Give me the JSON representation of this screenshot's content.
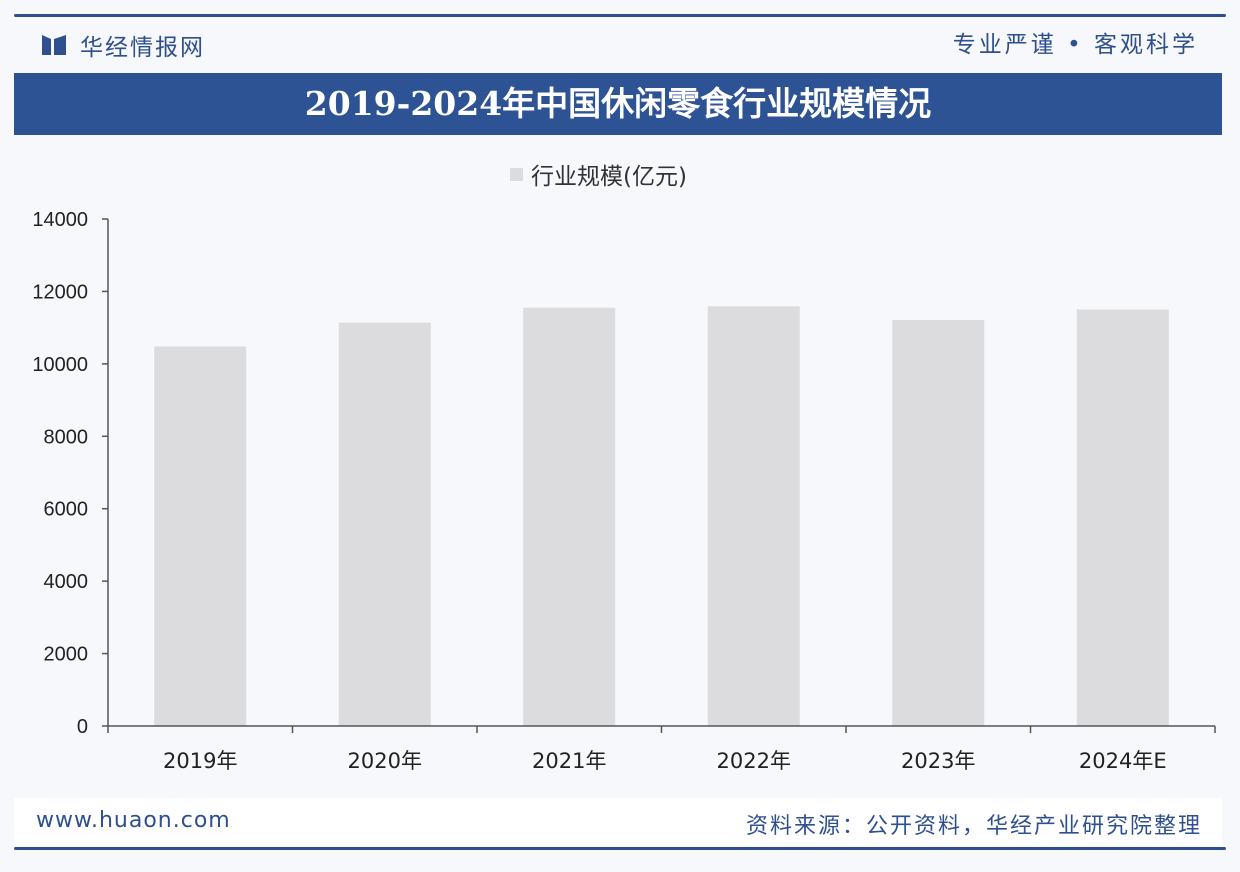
{
  "header": {
    "logo_text": "华经情报网",
    "slogan": "专业严谨 • 客观科学"
  },
  "chart_data": {
    "type": "bar",
    "title": "2019-2024年中国休闲零食行业规模情况",
    "categories": [
      "2019年",
      "2020年",
      "2021年",
      "2022年",
      "2023年",
      "2024年E"
    ],
    "series": [
      {
        "name": "行业规模(亿元)",
        "values": [
          10480,
          11140,
          11550,
          11590,
          11210,
          11500
        ]
      }
    ],
    "yticks": [
      "0",
      "2000",
      "4000",
      "6000",
      "8000",
      "10000",
      "12000",
      "14000"
    ],
    "ylim": [
      0,
      14000
    ],
    "grid": false,
    "legend": "top-center",
    "colors": {
      "bar": "#dcdcde",
      "axis": "#555555"
    }
  },
  "footer": {
    "url": "www.huaon.com",
    "source": "资料来源：公开资料，华经产业研究院整理"
  },
  "colors": {
    "brand": "#2f4f8f",
    "title_bar": "#2e5395",
    "background": "#f6f8fb"
  }
}
